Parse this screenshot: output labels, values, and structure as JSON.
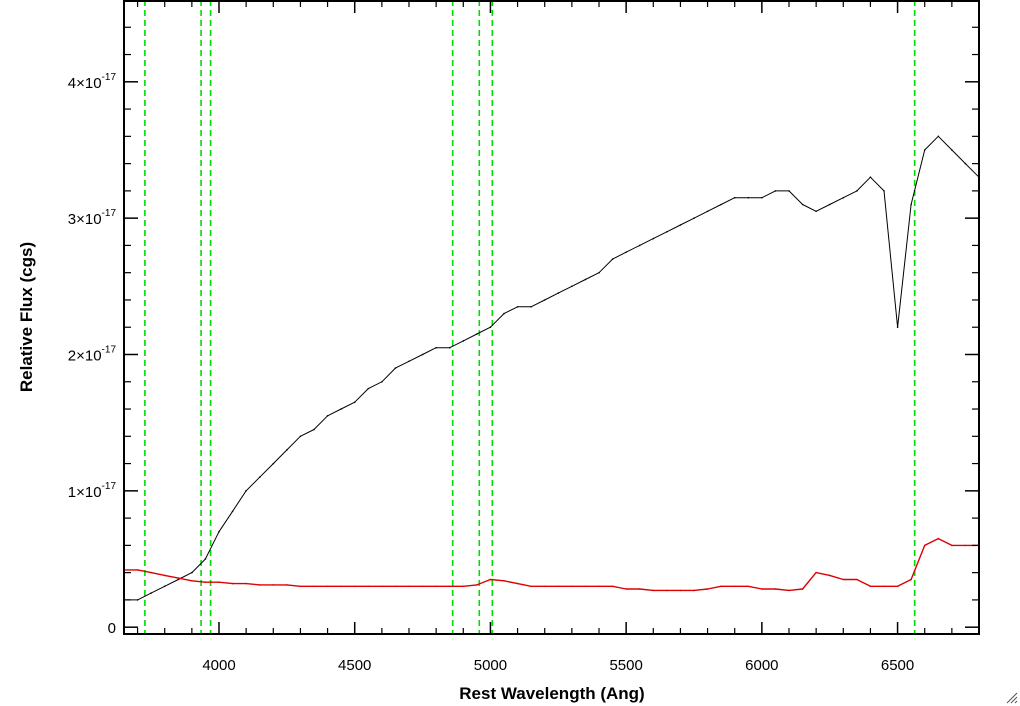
{
  "chart_data": {
    "type": "line",
    "title": "",
    "xlabel": "Rest Wavelength (Ang)",
    "ylabel": "Relative Flux (cgs)",
    "xlim": [
      3650,
      6800
    ],
    "ylim": [
      -5e-19,
      4.6e-17
    ],
    "x_ticks": [
      {
        "value": 4000,
        "label": "4000"
      },
      {
        "value": 4500,
        "label": "4500"
      },
      {
        "value": 5000,
        "label": "5000"
      },
      {
        "value": 5500,
        "label": "5500"
      },
      {
        "value": 6000,
        "label": "6000"
      },
      {
        "value": 6500,
        "label": "6500"
      }
    ],
    "y_ticks": [
      {
        "value": 0,
        "mantissa": "0",
        "exponent": ""
      },
      {
        "value": 1e-17,
        "mantissa": "1×10",
        "exponent": "-17"
      },
      {
        "value": 2e-17,
        "mantissa": "2×10",
        "exponent": "-17"
      },
      {
        "value": 3e-17,
        "mantissa": "3×10",
        "exponent": "-17"
      },
      {
        "value": 4e-17,
        "mantissa": "4×10",
        "exponent": "-17"
      }
    ],
    "vertical_lines": {
      "color": "#00dd00",
      "style": "dashed",
      "x": [
        3727,
        3934,
        3969,
        4861,
        4959,
        5007,
        6563
      ]
    },
    "series": [
      {
        "color": "#000000",
        "x": [
          3650,
          3700,
          3750,
          3800,
          3850,
          3900,
          3950,
          4000,
          4050,
          4100,
          4150,
          4200,
          4250,
          4300,
          4350,
          4400,
          4450,
          4500,
          4550,
          4600,
          4650,
          4700,
          4750,
          4800,
          4850,
          4900,
          4950,
          5000,
          5050,
          5100,
          5150,
          5200,
          5250,
          5300,
          5350,
          5400,
          5450,
          5500,
          5550,
          5600,
          5650,
          5700,
          5750,
          5800,
          5850,
          5900,
          5950,
          6000,
          6050,
          6100,
          6150,
          6200,
          6250,
          6300,
          6350,
          6400,
          6450,
          6500,
          6550,
          6600,
          6650,
          6700,
          6750,
          6800
        ],
        "y": [
          2e-18,
          2e-18,
          2.5e-18,
          3e-18,
          3.5e-18,
          4e-18,
          5e-18,
          7e-18,
          8.5e-18,
          1e-17,
          1.1e-17,
          1.2e-17,
          1.3e-17,
          1.4e-17,
          1.45e-17,
          1.55e-17,
          1.6e-17,
          1.65e-17,
          1.75e-17,
          1.8e-17,
          1.9e-17,
          1.95e-17,
          2e-17,
          2.05e-17,
          2.05e-17,
          2.1e-17,
          2.15e-17,
          2.2e-17,
          2.3e-17,
          2.35e-17,
          2.35e-17,
          2.4e-17,
          2.45e-17,
          2.5e-17,
          2.55e-17,
          2.6e-17,
          2.7e-17,
          2.75e-17,
          2.8e-17,
          2.85e-17,
          2.9e-17,
          2.95e-17,
          3e-17,
          3.05e-17,
          3.1e-17,
          3.15e-17,
          3.15e-17,
          3.15e-17,
          3.2e-17,
          3.2e-17,
          3.1e-17,
          3.05e-17,
          3.1e-17,
          3.15e-17,
          3.2e-17,
          3.3e-17,
          3.2e-17,
          2.2e-17,
          3.1e-17,
          3.5e-17,
          3.6e-17,
          3.5e-17,
          3.4e-17,
          3.3e-17
        ]
      },
      {
        "color": "#dd0000",
        "x": [
          3650,
          3700,
          3750,
          3800,
          3850,
          3900,
          3950,
          4000,
          4050,
          4100,
          4150,
          4200,
          4250,
          4300,
          4350,
          4400,
          4450,
          4500,
          4550,
          4600,
          4650,
          4700,
          4750,
          4800,
          4850,
          4900,
          4950,
          5000,
          5050,
          5100,
          5150,
          5200,
          5250,
          5300,
          5350,
          5400,
          5450,
          5500,
          5550,
          5600,
          5650,
          5700,
          5750,
          5800,
          5850,
          5900,
          5950,
          6000,
          6050,
          6100,
          6150,
          6200,
          6250,
          6300,
          6350,
          6400,
          6450,
          6500,
          6550,
          6600,
          6650,
          6700,
          6750,
          6800
        ],
        "y": [
          4.2e-18,
          4.2e-18,
          4e-18,
          3.8e-18,
          3.6e-18,
          3.4e-18,
          3.3e-18,
          3.3e-18,
          3.2e-18,
          3.2e-18,
          3.1e-18,
          3.1e-18,
          3.1e-18,
          3e-18,
          3e-18,
          3e-18,
          3e-18,
          3e-18,
          3e-18,
          3e-18,
          3e-18,
          3e-18,
          3e-18,
          3e-18,
          3e-18,
          3e-18,
          3.1e-18,
          3.5e-18,
          3.4e-18,
          3.2e-18,
          3e-18,
          3e-18,
          3e-18,
          3e-18,
          3e-18,
          3e-18,
          3e-18,
          2.8e-18,
          2.8e-18,
          2.7e-18,
          2.7e-18,
          2.7e-18,
          2.7e-18,
          2.8e-18,
          3e-18,
          3e-18,
          3e-18,
          2.8e-18,
          2.8e-18,
          2.7e-18,
          2.8e-18,
          4e-18,
          3.8e-18,
          3.5e-18,
          3.5e-18,
          3e-18,
          3e-18,
          3e-18,
          3.5e-18,
          6e-18,
          6.5e-18,
          6e-18,
          6e-18,
          6e-18
        ]
      }
    ]
  }
}
